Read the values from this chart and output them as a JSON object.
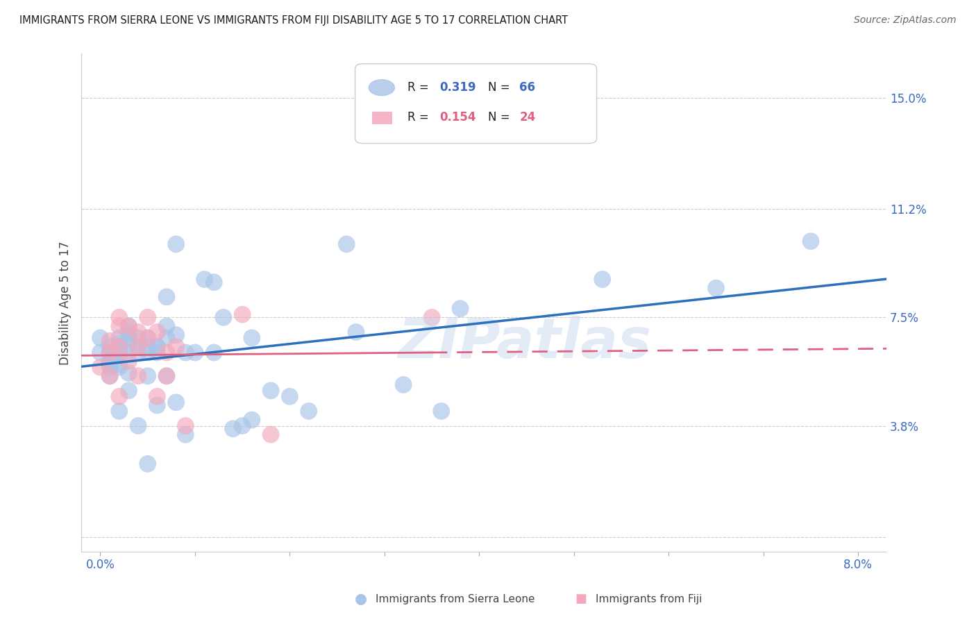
{
  "title": "IMMIGRANTS FROM SIERRA LEONE VS IMMIGRANTS FROM FIJI DISABILITY AGE 5 TO 17 CORRELATION CHART",
  "source": "Source: ZipAtlas.com",
  "ylabel": "Disability Age 5 to 17",
  "x_ticks": [
    0.0,
    0.01,
    0.02,
    0.03,
    0.04,
    0.05,
    0.06,
    0.07,
    0.08
  ],
  "y_ticks": [
    0.0,
    0.038,
    0.075,
    0.112,
    0.15
  ],
  "y_tick_labels": [
    "",
    "3.8%",
    "7.5%",
    "11.2%",
    "15.0%"
  ],
  "xlim": [
    -0.002,
    0.083
  ],
  "ylim": [
    -0.005,
    0.165
  ],
  "legend_R1": "0.319",
  "legend_N1": "66",
  "legend_R2": "0.154",
  "legend_N2": "24",
  "legend_label1": "Immigrants from Sierra Leone",
  "legend_label2": "Immigrants from Fiji",
  "color_sl": "#a8c4e8",
  "color_fiji": "#f4a8bc",
  "color_line_sl": "#2c6fbd",
  "color_line_fiji": "#e06080",
  "watermark": "ZIPatlas",
  "sierra_leone_x": [
    0.0,
    0.0,
    0.001,
    0.001,
    0.001,
    0.001,
    0.001,
    0.001,
    0.001,
    0.002,
    0.002,
    0.002,
    0.002,
    0.002,
    0.002,
    0.002,
    0.002,
    0.003,
    0.003,
    0.003,
    0.003,
    0.003,
    0.003,
    0.003,
    0.004,
    0.004,
    0.004,
    0.004,
    0.005,
    0.005,
    0.005,
    0.005,
    0.005,
    0.006,
    0.006,
    0.006,
    0.006,
    0.007,
    0.007,
    0.007,
    0.007,
    0.008,
    0.008,
    0.008,
    0.009,
    0.009,
    0.01,
    0.011,
    0.012,
    0.012,
    0.013,
    0.014,
    0.015,
    0.016,
    0.016,
    0.018,
    0.02,
    0.022,
    0.026,
    0.027,
    0.032,
    0.036,
    0.038,
    0.053,
    0.065,
    0.075
  ],
  "sierra_leone_y": [
    0.063,
    0.068,
    0.065,
    0.063,
    0.063,
    0.06,
    0.059,
    0.058,
    0.055,
    0.068,
    0.066,
    0.065,
    0.063,
    0.062,
    0.059,
    0.058,
    0.043,
    0.072,
    0.07,
    0.068,
    0.066,
    0.063,
    0.056,
    0.05,
    0.068,
    0.065,
    0.063,
    0.038,
    0.068,
    0.065,
    0.063,
    0.055,
    0.025,
    0.065,
    0.065,
    0.063,
    0.045,
    0.082,
    0.072,
    0.068,
    0.055,
    0.1,
    0.069,
    0.046,
    0.063,
    0.035,
    0.063,
    0.088,
    0.087,
    0.063,
    0.075,
    0.037,
    0.038,
    0.068,
    0.04,
    0.05,
    0.048,
    0.043,
    0.1,
    0.07,
    0.052,
    0.043,
    0.078,
    0.088,
    0.085,
    0.101
  ],
  "fiji_x": [
    0.0,
    0.001,
    0.001,
    0.001,
    0.002,
    0.002,
    0.002,
    0.002,
    0.003,
    0.003,
    0.004,
    0.004,
    0.004,
    0.005,
    0.005,
    0.006,
    0.006,
    0.007,
    0.007,
    0.008,
    0.009,
    0.015,
    0.018,
    0.035
  ],
  "fiji_y": [
    0.058,
    0.067,
    0.063,
    0.055,
    0.075,
    0.072,
    0.065,
    0.048,
    0.072,
    0.06,
    0.07,
    0.065,
    0.055,
    0.075,
    0.068,
    0.07,
    0.048,
    0.063,
    0.055,
    0.065,
    0.038,
    0.076,
    0.035,
    0.075
  ]
}
